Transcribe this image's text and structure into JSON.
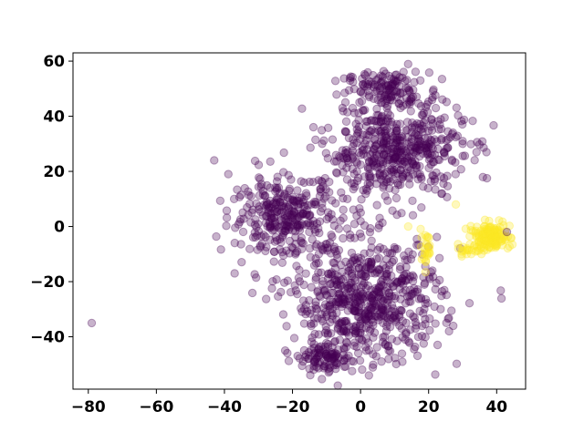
{
  "chart_data": {
    "type": "scatter",
    "title": "",
    "xlabel": "",
    "ylabel": "",
    "xlim": [
      -84.5,
      48.5
    ],
    "ylim": [
      -59,
      63
    ],
    "xticks": [
      -80,
      -60,
      -40,
      -20,
      0,
      20,
      40
    ],
    "yticks": [
      -40,
      -20,
      0,
      20,
      40,
      60
    ],
    "xtick_labels": [
      "−80",
      "−60",
      "−40",
      "−20",
      "0",
      "20",
      "40"
    ],
    "ytick_labels": [
      "−40",
      "−20",
      "0",
      "20",
      "40",
      "60"
    ],
    "grid": false,
    "legend": "none",
    "marker_alpha": 0.3,
    "colors": {
      "class_0": "#440154",
      "class_1": "#fde725"
    },
    "clusters": [
      {
        "class": 0,
        "center": [
          8,
          50
        ],
        "spread": [
          6,
          3
        ],
        "count": 120
      },
      {
        "class": 0,
        "center": [
          10,
          28
        ],
        "spread": [
          10,
          9
        ],
        "count": 520
      },
      {
        "class": 0,
        "center": [
          -22,
          4
        ],
        "spread": [
          8,
          7
        ],
        "count": 320
      },
      {
        "class": 0,
        "center": [
          2,
          -27
        ],
        "spread": [
          11,
          11
        ],
        "count": 650
      },
      {
        "class": 0,
        "center": [
          -10,
          -48
        ],
        "spread": [
          4,
          2.5
        ],
        "count": 90
      },
      {
        "class": 1,
        "center": [
          38,
          -4
        ],
        "spread": [
          3,
          2.5
        ],
        "count": 140
      },
      {
        "class": 1,
        "center": [
          19,
          -8
        ],
        "spread": [
          1.2,
          3
        ],
        "count": 25
      },
      {
        "class": 1,
        "center": [
          31,
          -9
        ],
        "spread": [
          2,
          1
        ],
        "count": 15
      }
    ],
    "points": [
      {
        "x": -79,
        "y": -35,
        "class": 0
      },
      {
        "x": -43,
        "y": 24,
        "class": 0
      },
      {
        "x": -37,
        "y": -17,
        "class": 0
      },
      {
        "x": 30,
        "y": 31,
        "class": 0
      },
      {
        "x": 30,
        "y": 30,
        "class": 0
      },
      {
        "x": 37,
        "y": 27,
        "class": 0
      },
      {
        "x": 43,
        "y": -2,
        "class": 0
      },
      {
        "x": 28,
        "y": 8,
        "class": 1
      },
      {
        "x": 14,
        "y": 0,
        "class": 1
      }
    ]
  }
}
